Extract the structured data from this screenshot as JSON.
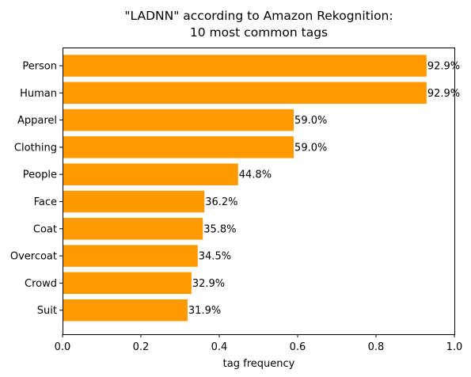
{
  "chart_data": {
    "type": "bar",
    "orientation": "horizontal",
    "title": "\"LADNN\" according to Amazon Rekognition:\n10 most common tags",
    "title_lines": [
      "\"LADNN\" according to Amazon Rekognition:",
      "10 most common tags"
    ],
    "xlabel": "tag frequency",
    "ylabel": "",
    "xlim": [
      0,
      1
    ],
    "xticks": [
      "0.0",
      "0.2",
      "0.4",
      "0.6",
      "0.8",
      "1.0"
    ],
    "categories": [
      "Person",
      "Human",
      "Apparel",
      "Clothing",
      "People",
      "Face",
      "Coat",
      "Overcoat",
      "Crowd",
      "Suit"
    ],
    "values": [
      0.929,
      0.929,
      0.59,
      0.59,
      0.448,
      0.362,
      0.358,
      0.345,
      0.329,
      0.319
    ],
    "data_labels": [
      "92.9%",
      "92.9%",
      "59.0%",
      "59.0%",
      "44.8%",
      "36.2%",
      "35.8%",
      "34.5%",
      "32.9%",
      "31.9%"
    ],
    "bar_color": "#ff9900",
    "grid": false,
    "legend": "none"
  }
}
